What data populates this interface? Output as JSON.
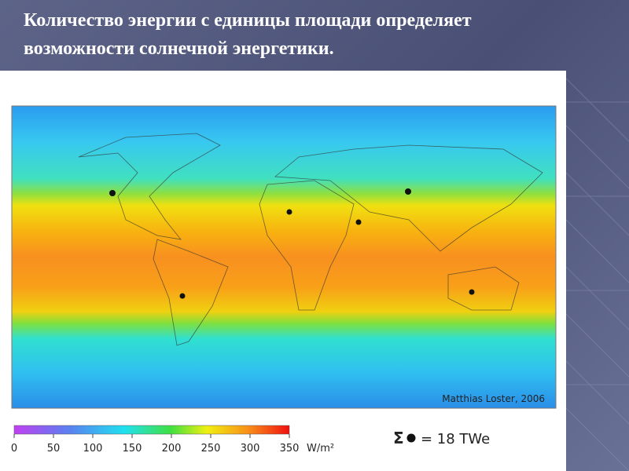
{
  "title": [
    "Количество энергии с единицы площади определяет",
    "возможности солнечной энергетики."
  ],
  "map": {
    "credit": "Matthias Loster, 2006"
  },
  "colorbar": {
    "ticks": [
      0,
      50,
      100,
      150,
      200,
      250,
      300,
      350
    ],
    "unit": "W/m²"
  },
  "summary": {
    "symbol": "Σ",
    "text": "= 18 TWe"
  }
}
